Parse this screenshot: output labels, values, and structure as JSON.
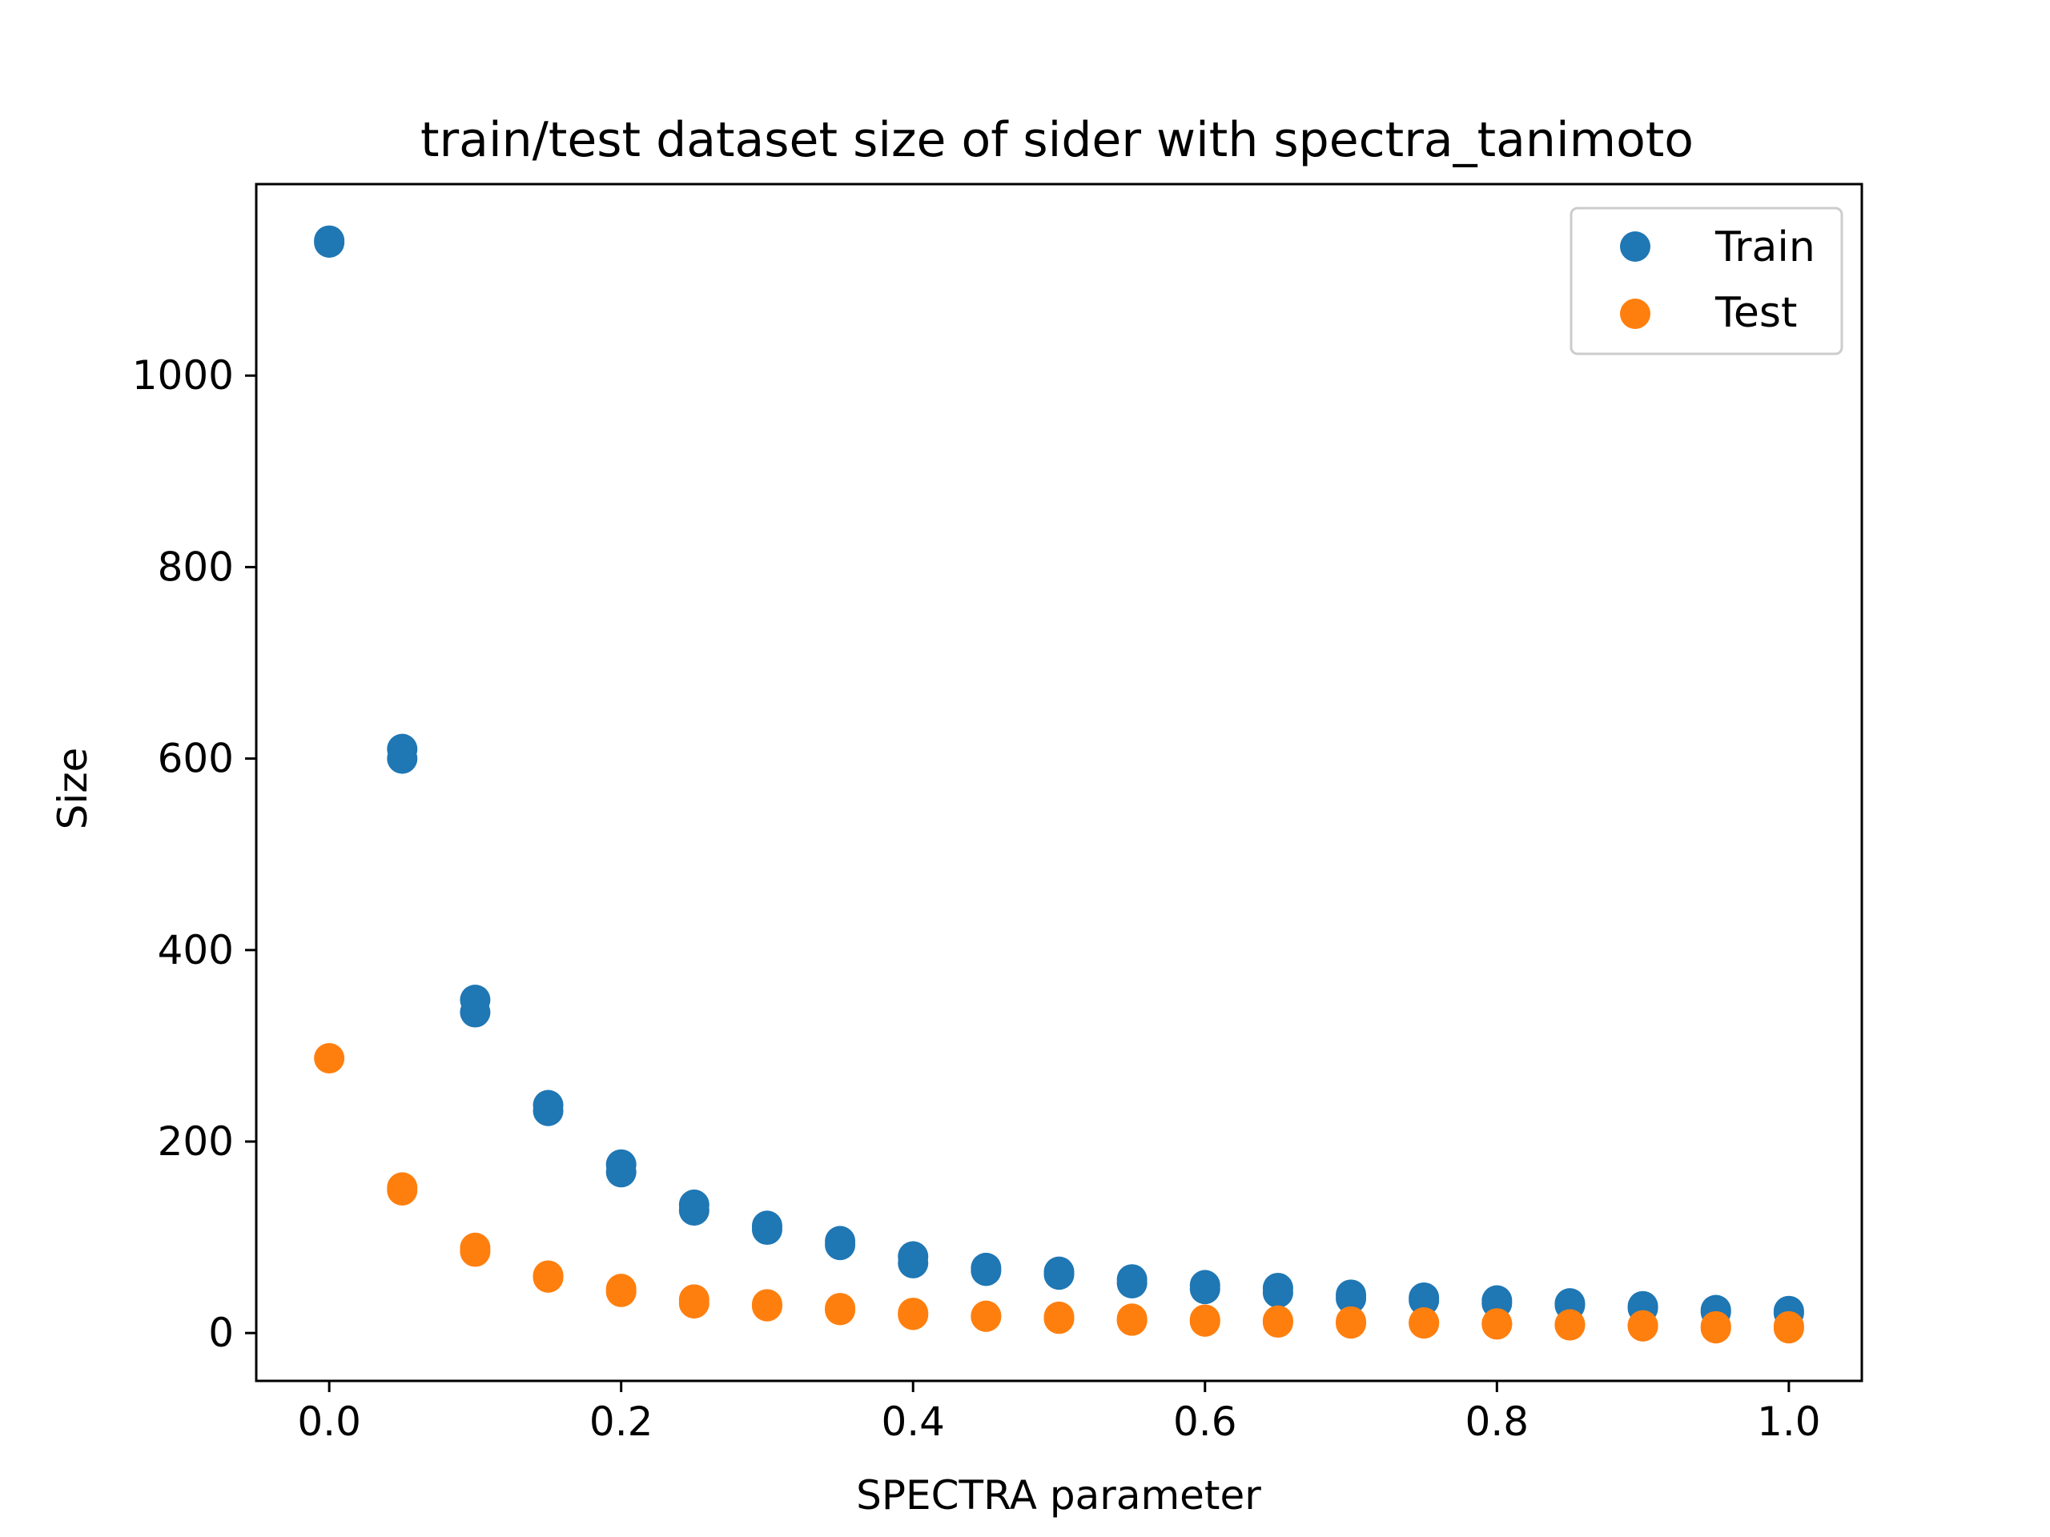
{
  "chart_data": {
    "type": "scatter",
    "title": "train/test dataset size of sider with spectra_tanimoto",
    "xlabel": "SPECTRA parameter",
    "ylabel": "Size",
    "xlim": [
      -0.05,
      1.05
    ],
    "ylim": [
      -50,
      1200
    ],
    "x_ticks": [
      "0.0",
      "0.2",
      "0.4",
      "0.6",
      "0.8",
      "1.0"
    ],
    "y_ticks": [
      "0",
      "200",
      "400",
      "600",
      "800",
      "1000"
    ],
    "legend": {
      "position": "top-right",
      "entries": [
        "Train",
        "Test"
      ]
    },
    "grid": false,
    "colors": {
      "Train": "#1f77b4",
      "Test": "#ff7f0e"
    },
    "series": [
      {
        "name": "Train",
        "points": [
          [
            0.0,
            1141
          ],
          [
            0.0,
            1139
          ],
          [
            0.05,
            610
          ],
          [
            0.05,
            600
          ],
          [
            0.1,
            348
          ],
          [
            0.1,
            335
          ],
          [
            0.15,
            238
          ],
          [
            0.15,
            232
          ],
          [
            0.2,
            176
          ],
          [
            0.2,
            168
          ],
          [
            0.25,
            134
          ],
          [
            0.25,
            128
          ],
          [
            0.3,
            112
          ],
          [
            0.3,
            108
          ],
          [
            0.35,
            96
          ],
          [
            0.35,
            92
          ],
          [
            0.4,
            80
          ],
          [
            0.4,
            73
          ],
          [
            0.45,
            68
          ],
          [
            0.45,
            65
          ],
          [
            0.5,
            64
          ],
          [
            0.5,
            61
          ],
          [
            0.55,
            56
          ],
          [
            0.55,
            52
          ],
          [
            0.6,
            50
          ],
          [
            0.6,
            46
          ],
          [
            0.65,
            47
          ],
          [
            0.65,
            42
          ],
          [
            0.7,
            40
          ],
          [
            0.7,
            36
          ],
          [
            0.75,
            37
          ],
          [
            0.75,
            34
          ],
          [
            0.8,
            34
          ],
          [
            0.8,
            31
          ],
          [
            0.85,
            31
          ],
          [
            0.85,
            29
          ],
          [
            0.9,
            28
          ],
          [
            0.9,
            26
          ],
          [
            0.95,
            24
          ],
          [
            0.95,
            22
          ],
          [
            1.0,
            23
          ],
          [
            1.0,
            21
          ]
        ]
      },
      {
        "name": "Test",
        "points": [
          [
            0.0,
            287
          ],
          [
            0.05,
            152
          ],
          [
            0.05,
            149
          ],
          [
            0.1,
            89
          ],
          [
            0.1,
            85
          ],
          [
            0.15,
            60
          ],
          [
            0.15,
            58
          ],
          [
            0.2,
            46
          ],
          [
            0.2,
            43
          ],
          [
            0.25,
            35
          ],
          [
            0.25,
            31
          ],
          [
            0.3,
            30
          ],
          [
            0.3,
            28
          ],
          [
            0.35,
            26
          ],
          [
            0.35,
            24
          ],
          [
            0.4,
            21
          ],
          [
            0.4,
            19
          ],
          [
            0.45,
            18
          ],
          [
            0.45,
            17
          ],
          [
            0.5,
            17
          ],
          [
            0.5,
            15
          ],
          [
            0.55,
            15
          ],
          [
            0.55,
            13
          ],
          [
            0.6,
            14
          ],
          [
            0.6,
            12
          ],
          [
            0.65,
            13
          ],
          [
            0.65,
            11
          ],
          [
            0.7,
            12
          ],
          [
            0.7,
            10
          ],
          [
            0.75,
            11
          ],
          [
            0.75,
            10
          ],
          [
            0.8,
            10
          ],
          [
            0.8,
            9
          ],
          [
            0.85,
            9
          ],
          [
            0.85,
            8
          ],
          [
            0.9,
            8
          ],
          [
            0.9,
            7
          ],
          [
            0.95,
            7
          ],
          [
            0.95,
            5
          ],
          [
            1.0,
            7
          ],
          [
            1.0,
            5
          ]
        ]
      }
    ]
  }
}
